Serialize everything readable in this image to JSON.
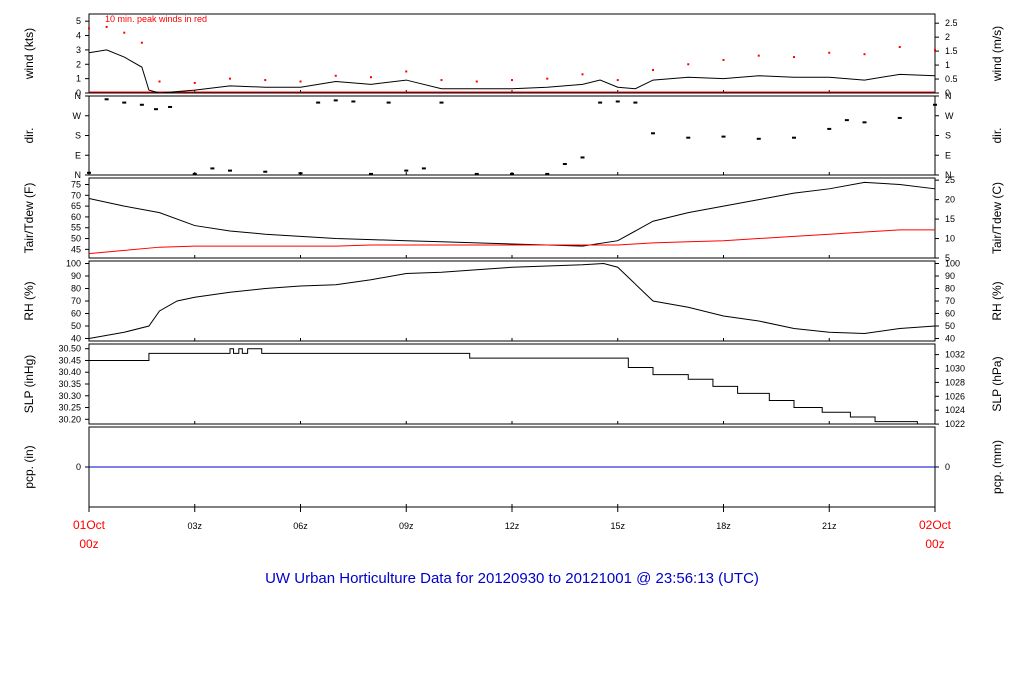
{
  "footer_title": "UW Urban Horticulture Data for 20120930  to  20121001 @ 23:56:13  (UTC)",
  "annotation": "10 min. peak winds in red",
  "x_axis": {
    "ticks": [
      {
        "hour": 0,
        "label": "01Oct",
        "sublabel": "00z",
        "red": true
      },
      {
        "hour": 3,
        "label": "03z"
      },
      {
        "hour": 6,
        "label": "06z"
      },
      {
        "hour": 9,
        "label": "09z"
      },
      {
        "hour": 12,
        "label": "12z"
      },
      {
        "hour": 15,
        "label": "15z"
      },
      {
        "hour": 18,
        "label": "18z"
      },
      {
        "hour": 21,
        "label": "21z"
      },
      {
        "hour": 24,
        "label": "02Oct",
        "sublabel": "00z",
        "red": true
      }
    ]
  },
  "colors": {
    "line": "#000000",
    "peak": "#ff0000",
    "tdew": "#ff0000",
    "pcp": "#0000cc",
    "title": "#0000cc",
    "date": "#ff0000"
  },
  "chart_data": [
    {
      "type": "line",
      "panel": "wind",
      "ylabel": "wind (kts)",
      "ylabel_right": "wind (m/s)",
      "yticks": [
        "0",
        "1",
        "2",
        "3",
        "4",
        "5"
      ],
      "yticks_right": [
        "0",
        "0.5",
        "1",
        "1.5",
        "2",
        "2.5"
      ],
      "ylim": [
        0,
        5.5
      ],
      "series": [
        {
          "role": "speed",
          "x": [
            0,
            0.5,
            1,
            1.5,
            1.7,
            2,
            3,
            4,
            5,
            6,
            7,
            8,
            9,
            10,
            11,
            12,
            13,
            14,
            14.5,
            15,
            15.5,
            16,
            17,
            18,
            19,
            20,
            21,
            22,
            23,
            24
          ],
          "values": [
            2.8,
            3.0,
            2.5,
            1.8,
            0.2,
            0,
            0.2,
            0.5,
            0.4,
            0.4,
            0.8,
            0.6,
            0.9,
            0.3,
            0.3,
            0.3,
            0.4,
            0.6,
            0.9,
            0.4,
            0.3,
            0.9,
            1.1,
            1.0,
            1.2,
            1.1,
            1.1,
            0.9,
            1.3,
            1.2
          ]
        },
        {
          "role": "peak",
          "x": [
            0,
            0.5,
            1,
            1.5,
            2,
            3,
            4,
            5,
            6,
            7,
            8,
            9,
            10,
            11,
            12,
            13,
            14,
            15,
            16,
            17,
            18,
            19,
            20,
            21,
            22,
            23,
            24
          ],
          "values": [
            4.5,
            4.6,
            4.2,
            3.5,
            0.8,
            0.7,
            1.0,
            0.9,
            0.8,
            1.2,
            1.1,
            1.5,
            0.9,
            0.8,
            0.9,
            1.0,
            1.3,
            0.9,
            1.6,
            2.0,
            2.3,
            2.6,
            2.5,
            2.8,
            2.7,
            3.2,
            3.0
          ]
        }
      ]
    },
    {
      "type": "scatter",
      "panel": "dir",
      "ylabel": "dir.",
      "ylabel_right": "dir.",
      "yticks": [
        "N",
        "E",
        "S",
        "W",
        "N"
      ],
      "yticks_right": [
        "N",
        "E",
        "S",
        "W",
        "N"
      ],
      "ylim": [
        0,
        360
      ],
      "x": [
        0,
        0.5,
        1,
        1.5,
        1.9,
        2.3,
        3,
        3.5,
        4,
        5,
        6,
        6.5,
        7,
        7.5,
        8,
        8.5,
        9,
        9.5,
        10,
        11,
        12,
        13,
        13.5,
        14,
        14.5,
        15,
        15.5,
        16,
        17,
        18,
        19,
        20,
        21,
        21.5,
        22,
        23,
        24
      ],
      "values": [
        10,
        345,
        330,
        320,
        300,
        310,
        5,
        30,
        20,
        15,
        8,
        330,
        340,
        335,
        5,
        330,
        20,
        30,
        330,
        5,
        5,
        5,
        50,
        80,
        330,
        335,
        330,
        190,
        170,
        175,
        165,
        170,
        210,
        250,
        240,
        260,
        320
      ]
    },
    {
      "type": "line",
      "panel": "temp",
      "ylabel": "Tair/Tdew (F)",
      "ylabel_right": "Tair/Tdew (C)",
      "yticks": [
        "45",
        "50",
        "55",
        "60",
        "65",
        "70",
        "75"
      ],
      "yticks_right": [
        "5",
        "10",
        "15",
        "20",
        "25"
      ],
      "ylim": [
        41,
        78
      ],
      "series": [
        {
          "role": "tair",
          "x": [
            0,
            1,
            2,
            3,
            4,
            5,
            6,
            7,
            8,
            9,
            10,
            11,
            12,
            13,
            14,
            15,
            16,
            17,
            18,
            19,
            20,
            21,
            22,
            23,
            24
          ],
          "values": [
            68.5,
            65,
            62,
            56,
            53.5,
            52,
            51,
            50,
            49.5,
            49,
            48.5,
            48,
            47.5,
            47,
            46.5,
            49,
            58,
            62,
            65,
            68,
            71,
            73,
            76,
            75,
            73
          ]
        },
        {
          "role": "tdew",
          "x": [
            0,
            1,
            2,
            3,
            4,
            5,
            6,
            7,
            8,
            9,
            10,
            11,
            12,
            13,
            14,
            15,
            16,
            17,
            18,
            19,
            20,
            21,
            22,
            23,
            24
          ],
          "values": [
            43,
            44.5,
            46,
            46.5,
            46.5,
            46.5,
            46.5,
            46.5,
            47,
            47,
            47,
            47,
            47,
            47,
            47,
            47,
            48,
            48.5,
            49,
            50,
            51,
            52,
            53,
            54,
            54
          ]
        }
      ]
    },
    {
      "type": "line",
      "panel": "rh",
      "ylabel": "RH (%)",
      "ylabel_right": "RH (%)",
      "yticks": [
        "40",
        "50",
        "60",
        "70",
        "80",
        "90",
        "100"
      ],
      "yticks_right": [
        "40",
        "50",
        "60",
        "70",
        "80",
        "90",
        "100"
      ],
      "ylim": [
        38,
        102
      ],
      "x": [
        0,
        1,
        1.7,
        2,
        2.5,
        3,
        4,
        5,
        6,
        7,
        8,
        9,
        10,
        11,
        12,
        13,
        14,
        14.6,
        15,
        16,
        17,
        18,
        19,
        20,
        21,
        22,
        23,
        24
      ],
      "values": [
        40,
        45,
        50,
        62,
        70,
        73,
        77,
        80,
        82,
        83,
        87,
        92,
        93,
        95,
        97,
        98,
        99,
        100,
        97,
        70,
        65,
        58,
        54,
        48,
        45,
        44,
        48,
        50
      ]
    },
    {
      "type": "line",
      "panel": "slp",
      "ylabel": "SLP (inHg)",
      "ylabel_right": "SLP (hPa)",
      "yticks": [
        "30.20",
        "30.25",
        "30.30",
        "30.35",
        "30.40",
        "30.45",
        "30.50"
      ],
      "yticks_right": [
        "1022",
        "1024",
        "1026",
        "1028",
        "1030",
        "1032"
      ],
      "ylim": [
        30.18,
        30.52
      ],
      "x": [
        0,
        1.7,
        1.7,
        4,
        4,
        4.1,
        4.1,
        4.25,
        4.25,
        4.35,
        4.35,
        4.5,
        4.5,
        4.9,
        4.9,
        10.8,
        10.8,
        15.3,
        15.3,
        16,
        16,
        17,
        17,
        17.7,
        17.7,
        18.4,
        18.4,
        19.3,
        19.3,
        20,
        20,
        20.8,
        20.8,
        21.6,
        21.6,
        22.3,
        22.3,
        23.5,
        23.5,
        24
      ],
      "values": [
        30.45,
        30.45,
        30.48,
        30.48,
        30.5,
        30.5,
        30.48,
        30.48,
        30.5,
        30.5,
        30.48,
        30.48,
        30.5,
        30.5,
        30.48,
        30.48,
        30.46,
        30.46,
        30.42,
        30.42,
        30.39,
        30.39,
        30.37,
        30.37,
        30.34,
        30.34,
        30.31,
        30.31,
        30.28,
        30.28,
        30.25,
        30.25,
        30.23,
        30.23,
        30.21,
        30.21,
        30.19,
        30.19,
        30.18,
        30.18
      ]
    },
    {
      "type": "line",
      "panel": "pcp",
      "ylabel": "pcp. (in)",
      "ylabel_right": "pcp. (mm)",
      "yticks": [
        "0"
      ],
      "yticks_right": [
        "0"
      ],
      "ylim": [
        -1,
        1
      ],
      "x": [
        0,
        24
      ],
      "values": [
        0,
        0
      ]
    }
  ]
}
